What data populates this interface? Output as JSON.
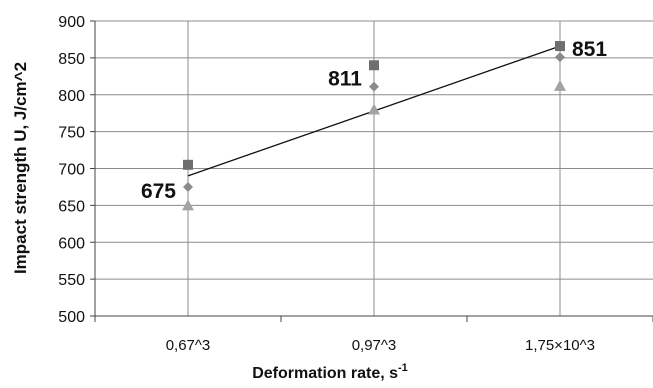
{
  "chart_data": {
    "type": "scatter",
    "categories": [
      "0,67^3",
      "0,97^3",
      "1,75×10^3"
    ],
    "xlabel": "Deformation rate, s",
    "xlabel_superscript": "-1",
    "ylabel": "Impact strength U,  J/cm^2",
    "ylim": [
      500,
      900
    ],
    "yticks": [
      500,
      550,
      600,
      650,
      700,
      750,
      800,
      850,
      900
    ],
    "grid": true,
    "legend": "none",
    "series": [
      {
        "marker": "square",
        "color": "#6e6e6e",
        "values": [
          705,
          840,
          866
        ]
      },
      {
        "marker": "diamond",
        "color": "#8a8a8a",
        "values": [
          675,
          811,
          851
        ]
      },
      {
        "marker": "triangle",
        "color": "#a3a3a3",
        "values": [
          650,
          780,
          812
        ]
      }
    ],
    "trendline": {
      "from": 690,
      "to": 866,
      "color": "#111111"
    },
    "data_labels": [
      "675",
      "811",
      "851"
    ]
  }
}
